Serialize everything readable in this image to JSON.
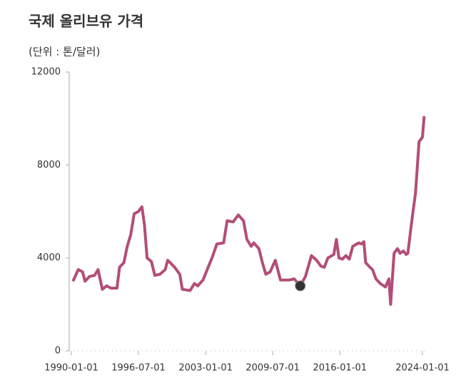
{
  "chart_data": {
    "type": "line",
    "title": "국제 올리브유 가격",
    "subtitle": "(단위 : 톤/달러)",
    "x": [
      "1990-03-01",
      "1990-09-01",
      "1991-02-01",
      "1991-05-01",
      "1991-10-01",
      "1992-04-01",
      "1992-08-01",
      "1993-01-01",
      "1993-06-01",
      "1993-11-01",
      "1994-06-01",
      "1994-09-01",
      "1995-02-01",
      "1995-06-01",
      "1995-10-01",
      "1996-02-01",
      "1996-07-01",
      "1996-11-01",
      "1997-02-01",
      "1997-05-01",
      "1997-10-01",
      "1998-02-01",
      "1998-08-01",
      "1999-02-01",
      "1999-05-01",
      "2000-01-01",
      "2000-07-01",
      "2000-10-01",
      "2001-07-01",
      "2001-12-01",
      "2002-04-01",
      "2002-10-01",
      "2003-04-01",
      "2003-09-01",
      "2004-02-01",
      "2004-10-01",
      "2005-02-01",
      "2005-09-01",
      "2006-03-01",
      "2006-09-01",
      "2007-01-01",
      "2007-06-01",
      "2007-09-01",
      "2008-03-01",
      "2008-07-01",
      "2008-11-01",
      "2009-04-01",
      "2009-10-01",
      "2010-04-01",
      "2011-02-01",
      "2011-08-01",
      "2012-03-01",
      "2012-09-01",
      "2013-04-01",
      "2013-10-01",
      "2014-03-01",
      "2014-07-01",
      "2014-11-01",
      "2015-06-01",
      "2015-09-01",
      "2015-12-01",
      "2016-04-01",
      "2016-08-01",
      "2016-12-01",
      "2017-04-01",
      "2017-11-01",
      "2018-02-01",
      "2018-05-01",
      "2018-07-01",
      "2018-12-01",
      "2019-03-01",
      "2019-07-01",
      "2019-12-01",
      "2020-06-01",
      "2020-10-01",
      "2020-12-01",
      "2021-04-01",
      "2021-08-01",
      "2021-11-01",
      "2022-03-01",
      "2022-06-01",
      "2022-08-01",
      "2023-01-01",
      "2023-05-01",
      "2023-09-01",
      "2024-01-01",
      "2024-03-01"
    ],
    "series": [
      {
        "name": "국제 올리브유 가격",
        "color": "#b34d78",
        "values": [
          3000,
          3500,
          3400,
          3000,
          3200,
          3250,
          3500,
          2650,
          2800,
          2700,
          2700,
          3600,
          3800,
          4500,
          5000,
          5900,
          6000,
          6200,
          5400,
          4000,
          3850,
          3250,
          3300,
          3500,
          3900,
          3600,
          3300,
          2650,
          2600,
          2900,
          2800,
          3050,
          3600,
          4050,
          4600,
          4650,
          5600,
          5550,
          5850,
          5600,
          4800,
          4500,
          4650,
          4400,
          3800,
          3300,
          3400,
          3900,
          3050,
          3050,
          3100,
          2800,
          3200,
          4100,
          3900,
          3650,
          3600,
          4000,
          4150,
          4800,
          4000,
          3950,
          4100,
          3950,
          4500,
          4650,
          4600,
          4700,
          3800,
          3600,
          3500,
          3100,
          2900,
          2750,
          3100,
          2000,
          4200,
          4400,
          4200,
          4300,
          4150,
          4200,
          5700,
          6800,
          9000,
          9200,
          10100
        ]
      }
    ],
    "xlim": [
      "1990-01-01",
      "2024-06-01"
    ],
    "xticks": [
      "1990-01-01",
      "1996-07-01",
      "2003-01-01",
      "2009-07-01",
      "2016-01-01",
      "2024-01-01"
    ],
    "ylim": [
      0,
      12000
    ],
    "yticks": [
      0,
      4000,
      8000,
      12000
    ]
  }
}
